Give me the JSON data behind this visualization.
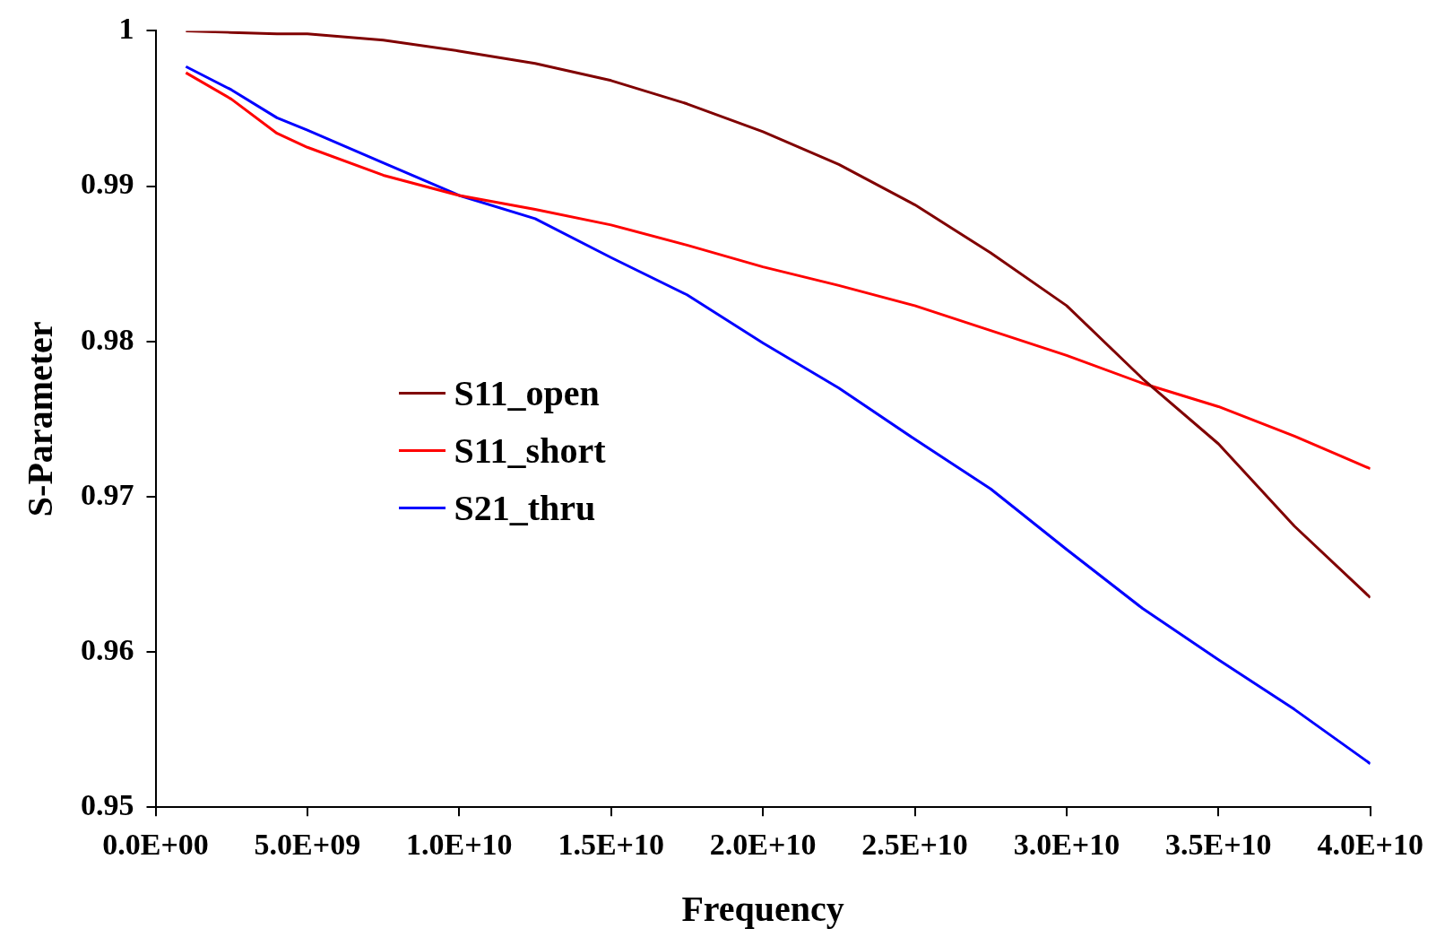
{
  "chart_data": {
    "type": "line",
    "xlabel": "Frequency",
    "ylabel": "S-Parameter",
    "x": [
      1000000000,
      2500000000,
      4000000000,
      5000000000,
      7500000000,
      10000000000,
      12500000000,
      15000000000,
      17500000000,
      20000000000,
      22500000000,
      25000000000,
      27500000000,
      30000000000,
      32500000000,
      35000000000,
      37500000000,
      40000000000
    ],
    "series": [
      {
        "name": "S11_open",
        "color": "#800000",
        "values": [
          1.0,
          0.9999,
          0.9998,
          0.9998,
          0.9994,
          0.9987,
          0.9979,
          0.9968,
          0.9953,
          0.9935,
          0.9914,
          0.9888,
          0.9857,
          0.9823,
          0.9776,
          0.9734,
          0.9681,
          0.9635
        ]
      },
      {
        "name": "S11_short",
        "color": "#ff0000",
        "values": [
          0.9973,
          0.9956,
          0.9934,
          0.9925,
          0.9907,
          0.9894,
          0.9885,
          0.9875,
          0.9862,
          0.9848,
          0.9836,
          0.9823,
          0.9807,
          0.9791,
          0.9773,
          0.9758,
          0.9739,
          0.9718
        ]
      },
      {
        "name": "S21_thru",
        "color": "#0000ff",
        "values": [
          0.9977,
          0.9962,
          0.9944,
          0.9936,
          0.9915,
          0.9894,
          0.9879,
          0.9854,
          0.983,
          0.9799,
          0.977,
          0.9737,
          0.9705,
          0.9666,
          0.9628,
          0.9595,
          0.9563,
          0.9528
        ]
      }
    ],
    "xlim": [
      0,
      40000000000
    ],
    "xticks": [
      {
        "value": 0,
        "label": "0.0E+00"
      },
      {
        "value": 5000000000,
        "label": "5.0E+09"
      },
      {
        "value": 10000000000,
        "label": "1.0E+10"
      },
      {
        "value": 15000000000,
        "label": "1.5E+10"
      },
      {
        "value": 20000000000,
        "label": "2.0E+10"
      },
      {
        "value": 25000000000,
        "label": "2.5E+10"
      },
      {
        "value": 30000000000,
        "label": "3.0E+10"
      },
      {
        "value": 35000000000,
        "label": "3.5E+10"
      },
      {
        "value": 40000000000,
        "label": "4.0E+10"
      }
    ],
    "ylim": [
      0.95,
      1
    ],
    "yticks": [
      0.95,
      0.96,
      0.97,
      0.98,
      0.99,
      1
    ],
    "grid": false,
    "legend": "left",
    "marker": "none",
    "line_style": "solid"
  }
}
